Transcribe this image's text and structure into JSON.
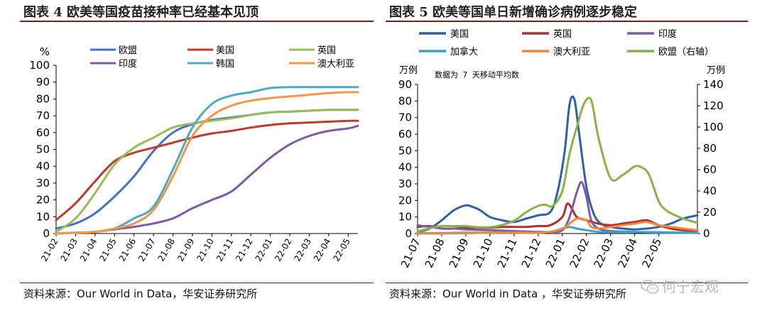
{
  "left": {
    "title": "图表 4 欧美等国疫苗接种率已经基本见顶",
    "source": "资料来源：Our World in Data，华安证券研究所",
    "chart_data": {
      "type": "line",
      "ylabel": "%",
      "ylim": [
        0,
        100
      ],
      "yticks": [
        0,
        10,
        20,
        30,
        40,
        50,
        60,
        70,
        80,
        90,
        100
      ],
      "x_start": 0,
      "x_end": 15.5,
      "xticks": [
        "21-02",
        "21-03",
        "21-04",
        "21-05",
        "21-06",
        "21-07",
        "21-08",
        "21-09",
        "21-10",
        "21-11",
        "21-12",
        "22-01",
        "22-02",
        "22-03",
        "22-04",
        "22-05"
      ],
      "legend": "top",
      "series": [
        {
          "name": "欧盟",
          "color": "#4472c4",
          "x": [
            0,
            1,
            2,
            3,
            4,
            5,
            6,
            7,
            8,
            9,
            10,
            11,
            12,
            13,
            14,
            15,
            15.5
          ],
          "values": [
            3,
            6,
            12,
            22,
            34,
            49,
            60,
            65,
            67.5,
            69,
            70.5,
            72,
            72.5,
            73,
            73.5,
            73.5,
            73.5
          ]
        },
        {
          "name": "美国",
          "color": "#c0392b",
          "x": [
            0,
            1,
            2,
            3,
            4,
            5,
            6,
            7,
            8,
            9,
            10,
            11,
            12,
            13,
            14,
            15,
            15.5
          ],
          "values": [
            8,
            18,
            31,
            43,
            48,
            51,
            54,
            57,
            59.5,
            61,
            63,
            64.5,
            65.5,
            66,
            66.5,
            67,
            67
          ]
        },
        {
          "name": "英国",
          "color": "#9bbb59",
          "x": [
            0,
            1,
            2,
            3,
            4,
            5,
            6,
            7,
            8,
            9,
            10,
            11,
            12,
            13,
            14,
            15,
            15.5
          ],
          "values": [
            1,
            9,
            24,
            41,
            51,
            57,
            63,
            65.5,
            67,
            68.5,
            70.5,
            72,
            72.5,
            73,
            73.5,
            73.5,
            73.5
          ]
        },
        {
          "name": "印度",
          "color": "#7f5aa6",
          "x": [
            0,
            1,
            2,
            3,
            4,
            5,
            6,
            7,
            8,
            9,
            10,
            11,
            12,
            13,
            14,
            15,
            15.5
          ],
          "values": [
            0,
            0.5,
            1,
            2.5,
            4,
            6,
            9,
            15,
            20,
            25,
            35,
            45,
            53,
            58,
            61,
            62.5,
            64
          ]
        },
        {
          "name": "韩国",
          "color": "#4bacc6",
          "x": [
            0,
            1,
            2,
            3,
            4,
            5,
            6,
            7,
            8,
            9,
            10,
            11,
            12,
            13,
            14,
            15,
            15.5
          ],
          "values": [
            0,
            0.5,
            1,
            3,
            9,
            16,
            38,
            63,
            77,
            82,
            84,
            86.5,
            87,
            87,
            87,
            87,
            87
          ]
        },
        {
          "name": "澳大利亚",
          "color": "#f79646",
          "x": [
            0,
            1,
            2,
            3,
            4,
            5,
            6,
            7,
            8,
            9,
            10,
            11,
            12,
            13,
            14,
            15,
            15.5
          ],
          "values": [
            0,
            0.5,
            1,
            3,
            6,
            14,
            34,
            58,
            70,
            76,
            79,
            80.5,
            81.5,
            82.5,
            83.5,
            84,
            84
          ]
        }
      ]
    }
  },
  "right": {
    "title": "图表 5 欧美等国单日新增确诊病例逐步稳定",
    "source": "资料来源：Our World in Data ，华安证券研究所",
    "chart_data": {
      "type": "line",
      "ylabel": "万例",
      "y2label": "万例",
      "annotation": "数据为 7 天移动平均数",
      "ylim": [
        0,
        90
      ],
      "yticks": [
        0,
        10,
        20,
        30,
        40,
        50,
        60,
        70,
        80,
        90
      ],
      "y2lim": [
        0,
        140
      ],
      "y2ticks": [
        0,
        20,
        40,
        60,
        80,
        100,
        120,
        140
      ],
      "x_start": 0,
      "x_end": 11.6,
      "xticks": [
        "21-07",
        "21-08",
        "21-09",
        "21-10",
        "21-11",
        "21-12",
        "22-01",
        "22-02",
        "22-03",
        "22-04",
        "22-05"
      ],
      "legend": "top",
      "series": [
        {
          "name": "美国",
          "color": "#2e62a8",
          "axis": "left",
          "x": [
            0,
            0.5,
            1,
            1.5,
            2,
            2.3,
            2.6,
            3,
            3.5,
            4,
            4.5,
            5,
            5.5,
            5.8,
            6.1,
            6.3,
            6.5,
            6.7,
            7,
            7.3,
            7.6,
            8,
            8.5,
            9,
            9.5,
            10,
            10.5,
            11,
            11.6
          ],
          "values": [
            1,
            3,
            8,
            14,
            17,
            16,
            14,
            10,
            8,
            7,
            9,
            11,
            13,
            25,
            50,
            78,
            81,
            60,
            28,
            12,
            6,
            4,
            3,
            2.5,
            3,
            4,
            6,
            9,
            11
          ]
        },
        {
          "name": "英国",
          "color": "#b22f2f",
          "axis": "left",
          "x": [
            0,
            0.5,
            1,
            1.5,
            2,
            2.5,
            3,
            3.5,
            4,
            4.5,
            5,
            5.5,
            6,
            6.2,
            6.4,
            6.6,
            7,
            7.5,
            8,
            8.5,
            9,
            9.5,
            10,
            10.5,
            11,
            11.6
          ],
          "values": [
            4,
            4.5,
            3,
            3,
            3.5,
            3.5,
            3.5,
            4,
            4,
            4,
            4.5,
            5,
            10,
            18,
            15,
            10,
            8,
            6,
            5,
            6,
            7,
            8,
            5,
            3,
            2,
            1.5
          ]
        },
        {
          "name": "印度",
          "color": "#7f5aa6",
          "axis": "left",
          "x": [
            0,
            0.5,
            1,
            1.5,
            2,
            3,
            4,
            5,
            5.5,
            6,
            6.3,
            6.6,
            6.8,
            7,
            7.2,
            7.5,
            8,
            9,
            10,
            11,
            11.6
          ],
          "values": [
            5,
            4,
            3,
            3,
            2.5,
            2,
            1.5,
            1,
            1,
            2,
            10,
            25,
            31,
            22,
            8,
            3,
            1.5,
            1,
            0.5,
            0.5,
            0.5
          ]
        },
        {
          "name": "加拿大",
          "color": "#3aa3c7",
          "axis": "left",
          "x": [
            0,
            1,
            2,
            3,
            4,
            5,
            5.5,
            6,
            6.3,
            6.6,
            7,
            7.5,
            8,
            9,
            10,
            11,
            11.6
          ],
          "values": [
            0.3,
            0.3,
            0.5,
            0.5,
            0.5,
            0.5,
            1,
            3,
            4,
            3,
            2,
            1,
            1,
            1,
            0.8,
            0.5,
            0.5
          ]
        },
        {
          "name": "澳大利亚",
          "color": "#f0883a",
          "axis": "left",
          "x": [
            0,
            1,
            2,
            3,
            4,
            5,
            5.5,
            6,
            6.3,
            6.6,
            7,
            7.2,
            7.5,
            8,
            8.5,
            9,
            9.5,
            10,
            10.5,
            11,
            11.6
          ],
          "values": [
            0,
            0,
            0.2,
            0.5,
            0.5,
            0.5,
            1,
            3,
            6,
            9,
            8,
            4,
            3,
            4,
            5,
            6,
            7,
            5,
            4,
            3,
            2
          ]
        },
        {
          "name": "欧盟（右轴）",
          "color": "#8cb34a",
          "axis": "right",
          "x": [
            0,
            0.5,
            1,
            1.5,
            2,
            2.5,
            3,
            3.5,
            4,
            4.5,
            5,
            5.3,
            5.6,
            6,
            6.3,
            6.6,
            6.9,
            7.2,
            7.5,
            8,
            8.5,
            9,
            9.3,
            9.6,
            10,
            10.3,
            10.6,
            11,
            11.3,
            11.6
          ],
          "values": [
            2,
            5,
            7,
            7,
            7,
            6,
            6,
            8,
            12,
            20,
            26,
            27,
            26,
            40,
            75,
            100,
            122,
            125,
            90,
            52,
            55,
            63,
            62,
            55,
            30,
            22,
            18,
            14,
            12,
            10
          ]
        }
      ]
    }
  },
  "watermark": "何宁宏观"
}
